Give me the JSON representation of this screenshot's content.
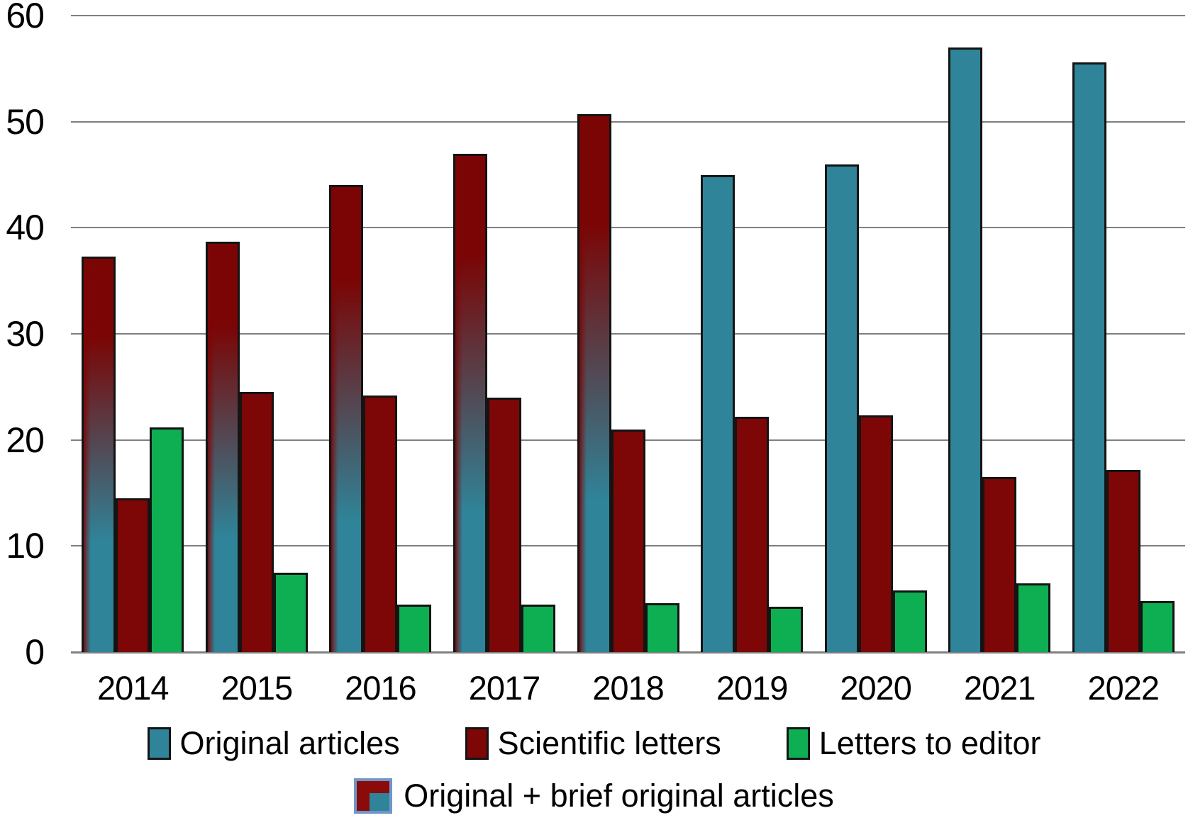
{
  "chart_data": {
    "type": "bar",
    "title": "",
    "xlabel": "",
    "ylabel": "",
    "ylim": [
      0,
      60
    ],
    "yticks": [
      0,
      10,
      20,
      30,
      40,
      50,
      60
    ],
    "grid": "horizontal",
    "legend_position": "bottom",
    "categories": [
      "2014",
      "2015",
      "2016",
      "2017",
      "2018",
      "2019",
      "2020",
      "2021",
      "2022"
    ],
    "series": [
      {
        "name": "Original articles",
        "color": "#2F8499",
        "values": [
          null,
          null,
          null,
          null,
          null,
          45,
          46,
          57,
          55.6
        ]
      },
      {
        "name": "Scientific letters",
        "color": "#7D0606",
        "values": [
          14.5,
          24.5,
          24.2,
          24,
          21,
          22.2,
          22.3,
          16.5,
          17.2
        ]
      },
      {
        "name": "Letters to editor",
        "color": "#0EAF52",
        "values": [
          21.2,
          7.5,
          4.5,
          4.5,
          4.6,
          4.3,
          5.8,
          6.5,
          4.8
        ]
      },
      {
        "name": "Original + brief original articles",
        "color_top": "#7B0505",
        "color_bottom": "#2F8499",
        "values": [
          37.3,
          38.7,
          44,
          47,
          50.7,
          null,
          null,
          null,
          null
        ]
      }
    ],
    "colors": {
      "gridline": "#7F7F7F",
      "bar_outline": "#141414",
      "legend2_swatch_border": "#6F96C8"
    }
  }
}
